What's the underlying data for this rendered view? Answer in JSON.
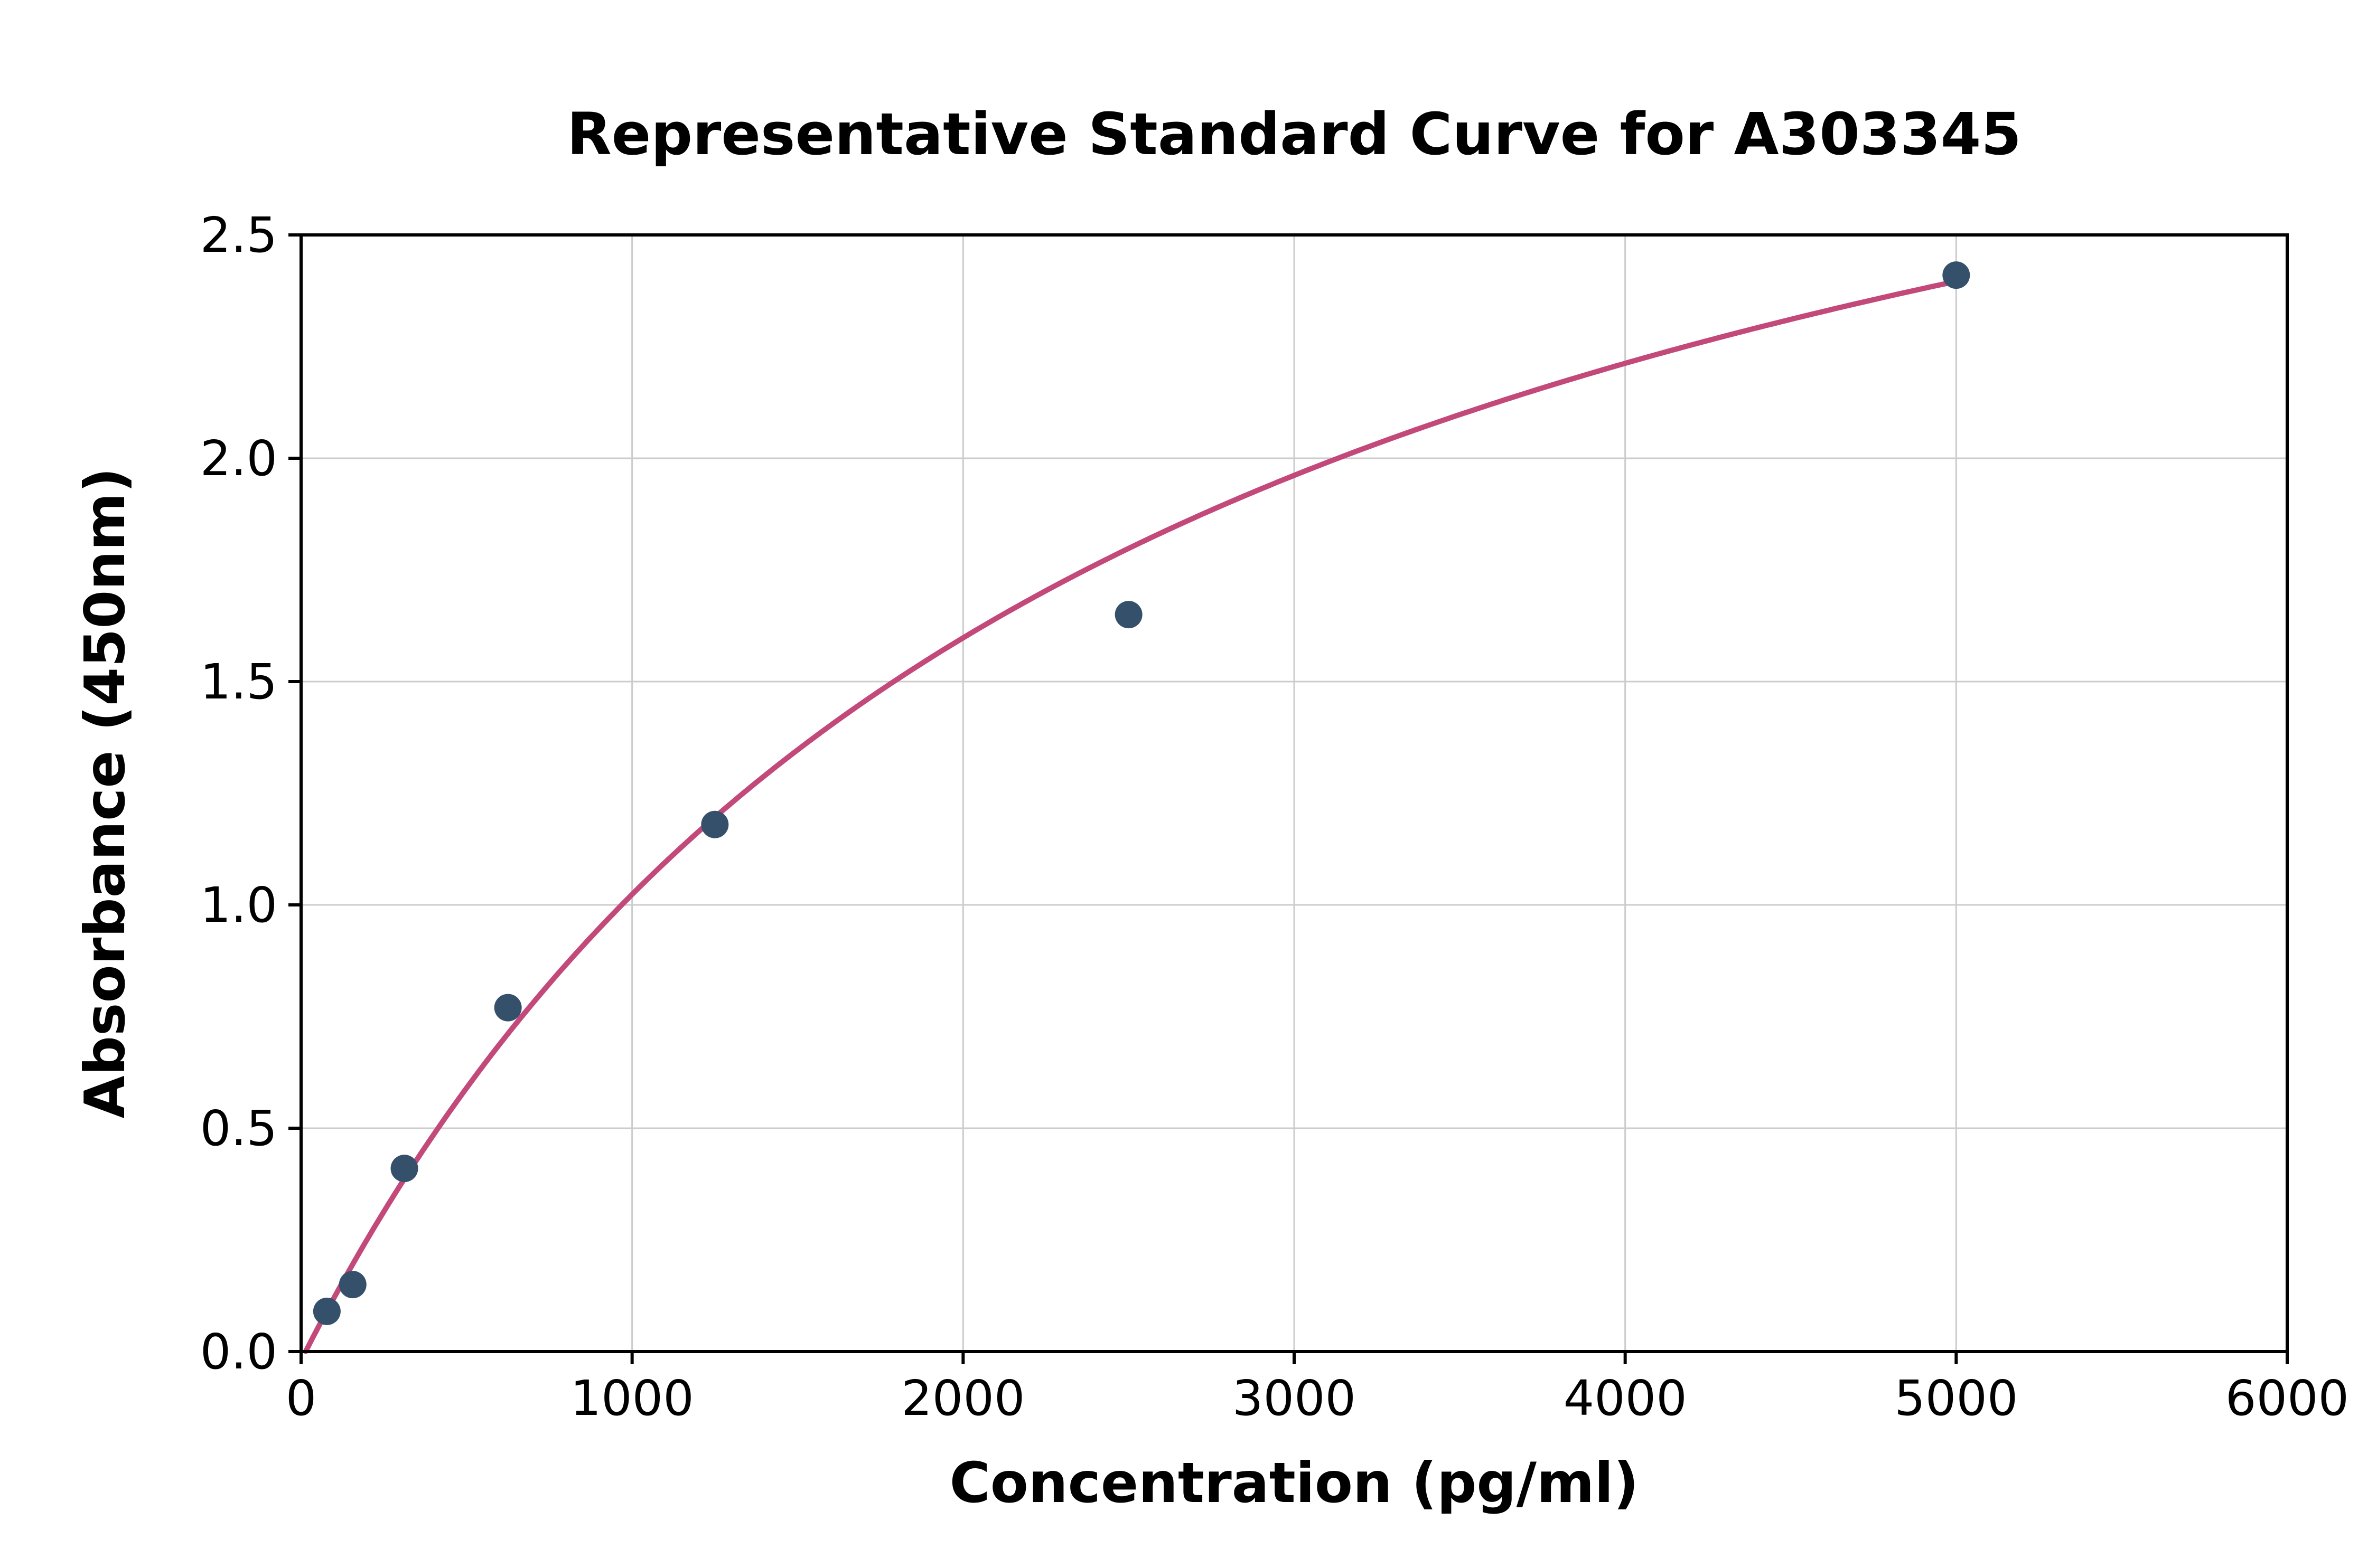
{
  "chart_data": {
    "type": "scatter",
    "title": "Representative Standard Curve for A303345",
    "xlabel": "Concentration (pg/ml)",
    "ylabel": "Absorbance (450nm)",
    "xlim": [
      0,
      6000
    ],
    "ylim": [
      0,
      2.5
    ],
    "x_ticks": [
      0,
      1000,
      2000,
      3000,
      4000,
      5000,
      6000
    ],
    "x_tick_labels": [
      "0",
      "1000",
      "2000",
      "3000",
      "4000",
      "5000",
      "6000"
    ],
    "y_ticks": [
      0.0,
      0.5,
      1.0,
      1.5,
      2.0,
      2.5
    ],
    "y_tick_labels": [
      "0.0",
      "0.5",
      "1.0",
      "1.5",
      "2.0",
      "2.5"
    ],
    "grid": true,
    "legend": "none",
    "points": {
      "name": "standards",
      "x": [
        78,
        156,
        312,
        625,
        1250,
        2500,
        5000
      ],
      "y": [
        0.09,
        0.15,
        0.41,
        0.77,
        1.18,
        1.65,
        2.41
      ]
    },
    "fit_curve": {
      "model": "saturation",
      "formula": "y = vmax * x / (k + x) + offset",
      "vmax": 3.6,
      "k": 2450,
      "offset": -0.02,
      "x_start": 14,
      "x_end": 5010
    },
    "colors": {
      "points": "#35506b",
      "curve": "#c2497a",
      "grid": "#cccccc",
      "axis": "#000000",
      "background": "#ffffff",
      "text": "#000000"
    }
  }
}
